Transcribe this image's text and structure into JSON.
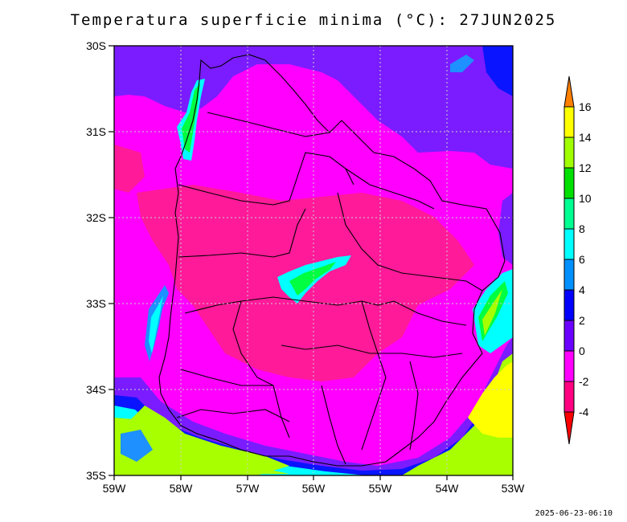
{
  "title": "Temperatura superficie minima (°C): 27JUN2025",
  "timestamp": "2025-06-23-06:10",
  "lat_ticks": [
    "30S",
    "31S",
    "32S",
    "33S",
    "34S",
    "35S"
  ],
  "lon_ticks": [
    "59W",
    "58W",
    "57W",
    "56W",
    "55W",
    "54W",
    "53W"
  ],
  "colorbar": {
    "labels": [
      "16",
      "14",
      "12",
      "10",
      "8",
      "6",
      "4",
      "2",
      "0",
      "-2",
      "-4"
    ],
    "colors": [
      "#ff7f00",
      "#ffff00",
      "#a0ff00",
      "#00e000",
      "#00ff90",
      "#00ffff",
      "#0090ff",
      "#0000ff",
      "#6a00ff",
      "#ff00ff",
      "#ff0080",
      "#ff0000"
    ]
  },
  "palette": {
    "purple": "#7a1cff",
    "magenta": "#ff00ff",
    "pink": "#ff1a9a",
    "blue": "#0a14ff",
    "sky": "#1e90ff",
    "cyan": "#00ffff",
    "green": "#00ff40",
    "lime": "#a8ff00",
    "yellow": "#ffff00"
  }
}
